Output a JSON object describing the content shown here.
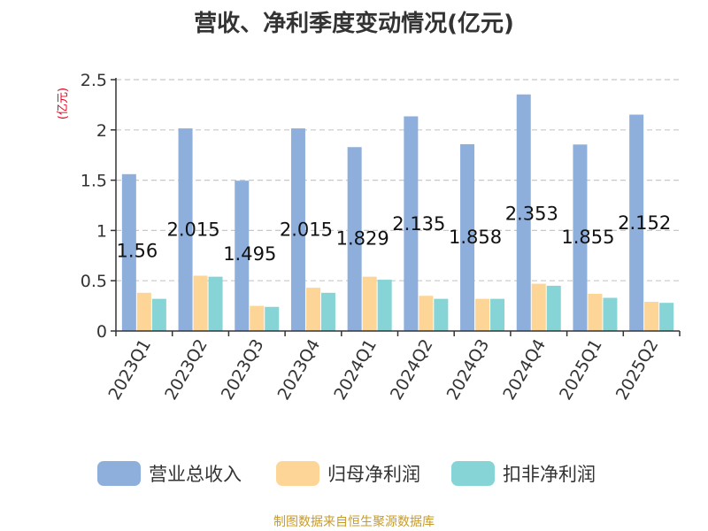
{
  "chart_data": {
    "type": "bar",
    "title": "营收、净利季度变动情况(亿元)",
    "unit_label": "(亿元)",
    "categories": [
      "2023Q1",
      "2023Q2",
      "2023Q3",
      "2023Q4",
      "2024Q1",
      "2024Q2",
      "2024Q3",
      "2024Q4",
      "2025Q1",
      "2025Q2"
    ],
    "series": [
      {
        "name": "营业总收入",
        "color": "#8eafdc",
        "values": [
          1.56,
          2.015,
          1.495,
          2.015,
          1.829,
          2.135,
          1.858,
          2.353,
          1.855,
          2.152
        ]
      },
      {
        "name": "归母净利润",
        "color": "#fdd596",
        "values": [
          0.38,
          0.55,
          0.25,
          0.43,
          0.54,
          0.35,
          0.32,
          0.47,
          0.37,
          0.29
        ]
      },
      {
        "name": "扣非净利润",
        "color": "#86d4d6",
        "values": [
          0.32,
          0.54,
          0.24,
          0.38,
          0.51,
          0.32,
          0.32,
          0.45,
          0.33,
          0.28
        ]
      }
    ],
    "data_labels": [
      "1.56",
      "2.015",
      "1.495",
      "2.015",
      "1.829",
      "2.135",
      "1.858",
      "2.353",
      "1.855",
      "2.152"
    ],
    "ylim": [
      0,
      2.5
    ],
    "yticks": [
      {
        "value": 0,
        "label": "0"
      },
      {
        "value": 0.5,
        "label": "0.5"
      },
      {
        "value": 1,
        "label": "1"
      },
      {
        "value": 1.5,
        "label": "1.5"
      },
      {
        "value": 2,
        "label": "2"
      },
      {
        "value": 2.5,
        "label": "2.5"
      }
    ],
    "grid": true,
    "legend_position": "bottom"
  },
  "footer": {
    "source": "制图数据来自恒生聚源数据库"
  }
}
